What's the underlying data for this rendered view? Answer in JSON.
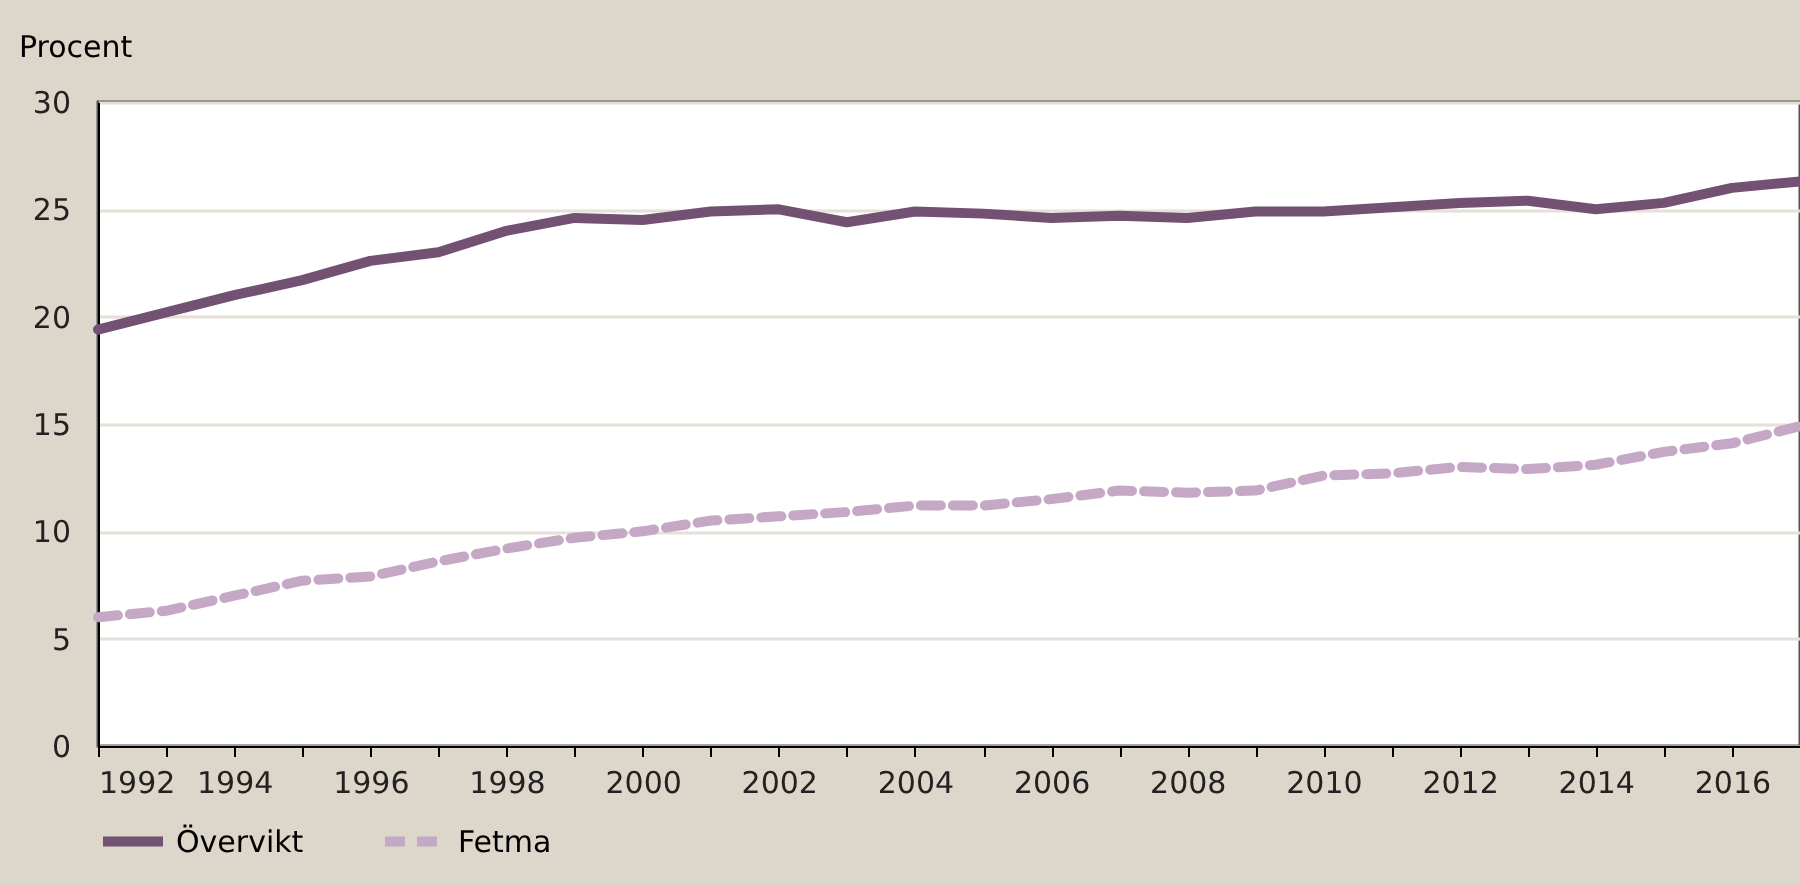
{
  "chart_data": {
    "type": "line",
    "ylabel": "Procent",
    "x": [
      1992,
      1993,
      1994,
      1995,
      1996,
      1997,
      1998,
      1999,
      2000,
      2001,
      2002,
      2003,
      2004,
      2005,
      2006,
      2007,
      2008,
      2009,
      2010,
      2011,
      2012,
      2013,
      2014,
      2015,
      2016,
      2017
    ],
    "series": [
      {
        "name": "Övervikt",
        "color": "#735173",
        "line_style": "solid",
        "values": [
          19.4,
          20.2,
          21.0,
          21.7,
          22.6,
          23.0,
          24.0,
          24.6,
          24.5,
          24.9,
          25.0,
          24.4,
          24.9,
          24.8,
          24.6,
          24.7,
          24.6,
          24.9,
          24.9,
          25.1,
          25.3,
          25.4,
          25.0,
          25.3,
          26.0,
          26.3
        ]
      },
      {
        "name": "Fetma",
        "color": "#c5a8c5",
        "line_style": "dashed",
        "values": [
          6.0,
          6.3,
          7.0,
          7.7,
          7.9,
          8.6,
          9.2,
          9.7,
          10.0,
          10.5,
          10.7,
          10.9,
          11.2,
          11.2,
          11.5,
          11.9,
          11.8,
          11.9,
          12.6,
          12.7,
          13.0,
          12.9,
          13.1,
          13.7,
          14.1,
          14.9
        ]
      }
    ],
    "xlim": [
      1992,
      2017
    ],
    "xticks": [
      1992,
      {
        "value": 1993,
        "label": null
      },
      1994,
      {
        "value": 1995,
        "label": null
      },
      1996,
      {
        "value": 1997,
        "label": null
      },
      1998,
      {
        "value": 1999,
        "label": null
      },
      2000,
      {
        "value": 2001,
        "label": null
      },
      2002,
      {
        "value": 2003,
        "label": null
      },
      2004,
      {
        "value": 2005,
        "label": null
      },
      2006,
      {
        "value": 2007,
        "label": null
      },
      2008,
      {
        "value": 2009,
        "label": null
      },
      2010,
      {
        "value": 2011,
        "label": null
      },
      2012,
      {
        "value": 2013,
        "label": null
      },
      2014,
      {
        "value": 2015,
        "label": null
      },
      2016,
      {
        "value": 2017,
        "label": null
      }
    ],
    "ylim": [
      0,
      30
    ],
    "yticks": [
      0,
      5,
      10,
      15,
      20,
      25,
      30
    ],
    "grid": "y",
    "legend": "bottom"
  }
}
